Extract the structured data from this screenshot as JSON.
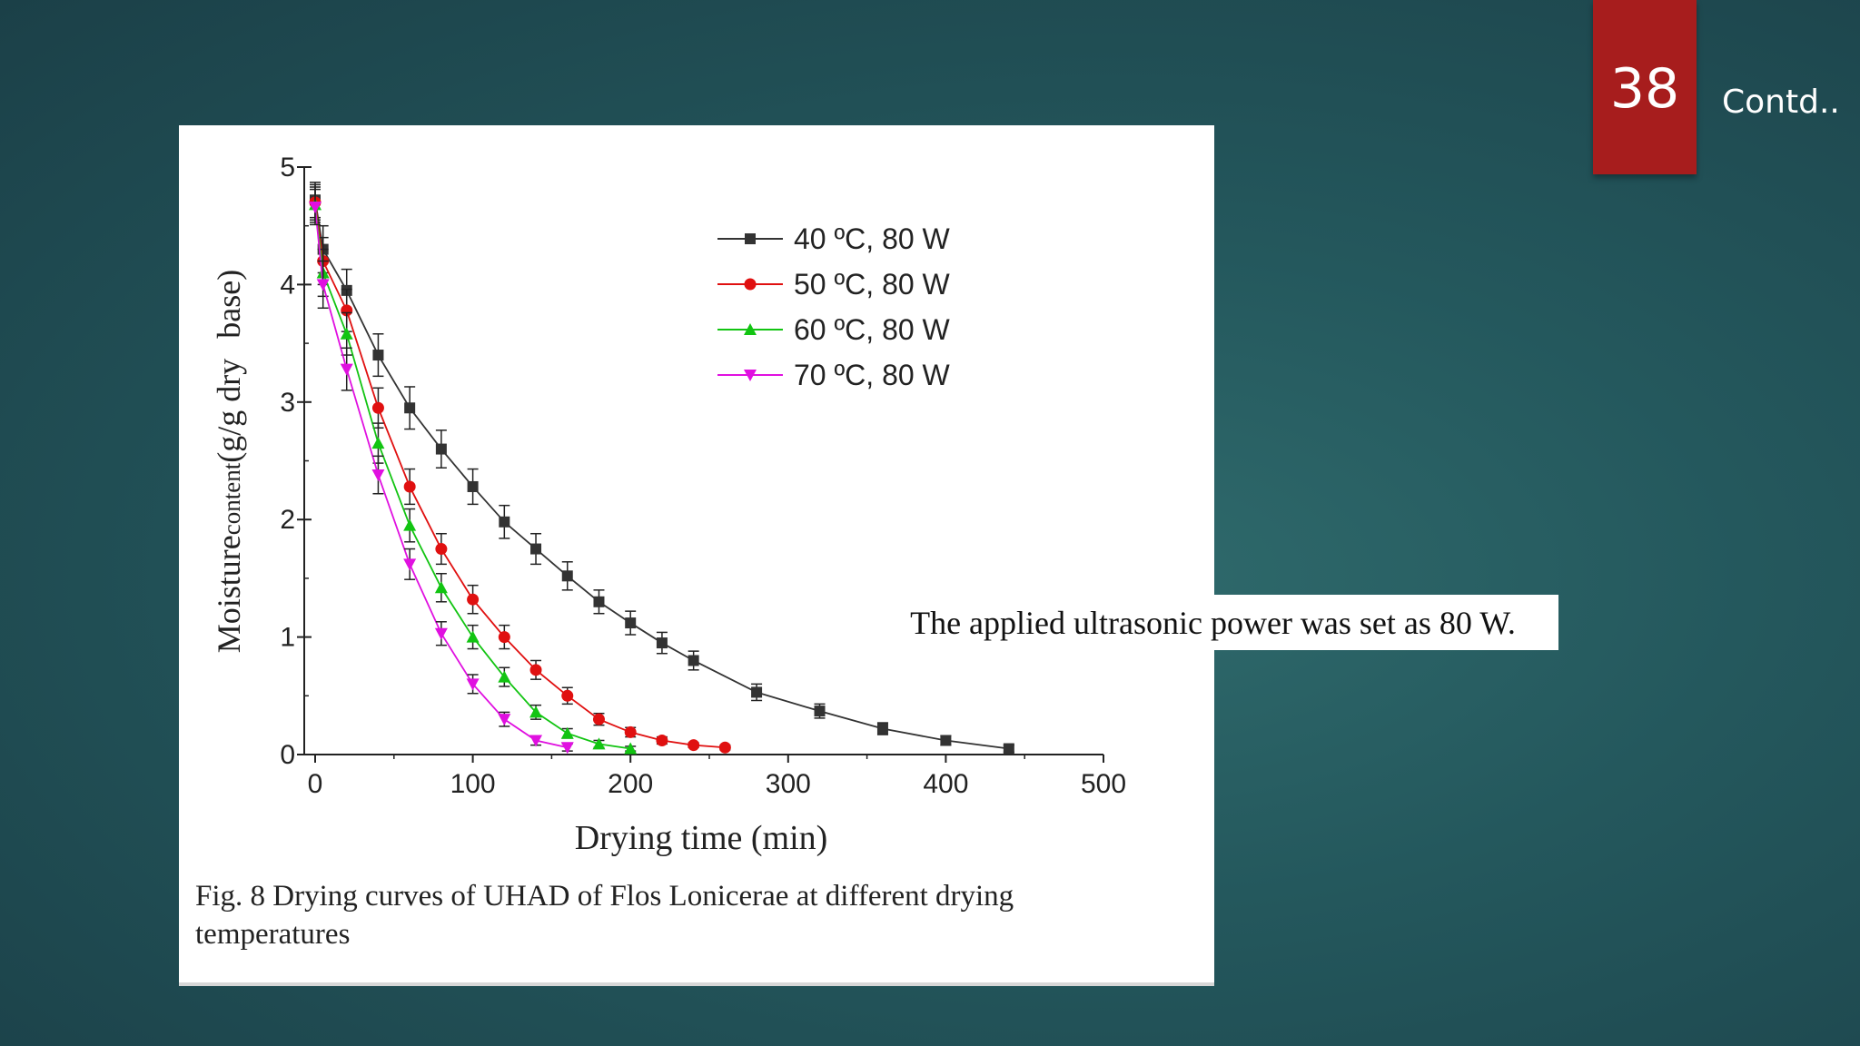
{
  "slide": {
    "number": "38",
    "title": "Contd..",
    "note": "The applied ultrasonic power was set as 80 W.",
    "accent_color": "#a71d1d"
  },
  "figure": {
    "caption_line1": "Fig. 8 Drying curves of UHAD of Flos Lonicerae at different drying",
    "caption_line2": "temperatures"
  },
  "chart_data": {
    "type": "line",
    "title": "",
    "xlabel": "Drying time (min)",
    "ylabel_parts": [
      "Moisture",
      "content",
      "(g/g dry",
      "base)"
    ],
    "xlim": [
      0,
      500
    ],
    "ylim": [
      0,
      5
    ],
    "x_ticks": [
      0,
      100,
      200,
      300,
      400,
      500
    ],
    "y_ticks": [
      0,
      1,
      2,
      3,
      4,
      5
    ],
    "legend_position": "top-right",
    "series": [
      {
        "name": "40 ºC, 80 W",
        "color": "#333333",
        "marker": "square",
        "x": [
          0,
          5,
          20,
          40,
          60,
          80,
          100,
          120,
          140,
          160,
          180,
          200,
          220,
          240,
          280,
          320,
          360,
          400,
          440
        ],
        "y": [
          4.72,
          4.3,
          3.95,
          3.4,
          2.95,
          2.6,
          2.28,
          1.98,
          1.75,
          1.52,
          1.3,
          1.12,
          0.95,
          0.8,
          0.53,
          0.37,
          0.22,
          0.12,
          0.05
        ],
        "err": [
          0.15,
          0.2,
          0.18,
          0.18,
          0.18,
          0.16,
          0.15,
          0.14,
          0.13,
          0.12,
          0.1,
          0.1,
          0.09,
          0.08,
          0.07,
          0.06,
          0.05,
          0.04,
          0.03
        ]
      },
      {
        "name": "50 ºC, 80 W",
        "color": "#e01010",
        "marker": "circle",
        "x": [
          0,
          5,
          20,
          40,
          60,
          80,
          100,
          120,
          140,
          160,
          180,
          200,
          220,
          240,
          260
        ],
        "y": [
          4.7,
          4.2,
          3.78,
          2.95,
          2.28,
          1.75,
          1.32,
          1.0,
          0.72,
          0.5,
          0.3,
          0.19,
          0.12,
          0.08,
          0.06
        ],
        "err": [
          0.15,
          0.2,
          0.18,
          0.17,
          0.15,
          0.13,
          0.12,
          0.1,
          0.08,
          0.07,
          0.05,
          0.04,
          0.03,
          0.02,
          0.02
        ]
      },
      {
        "name": "60 ºC, 80 W",
        "color": "#12c412",
        "marker": "triangle",
        "x": [
          0,
          5,
          20,
          40,
          60,
          80,
          100,
          120,
          140,
          160,
          180,
          200
        ],
        "y": [
          4.68,
          4.1,
          3.58,
          2.65,
          1.95,
          1.42,
          1.0,
          0.66,
          0.36,
          0.18,
          0.09,
          0.05
        ],
        "err": [
          0.15,
          0.2,
          0.18,
          0.17,
          0.14,
          0.12,
          0.1,
          0.08,
          0.06,
          0.04,
          0.03,
          0.02
        ]
      },
      {
        "name": "70 ºC, 80 W",
        "color": "#e010e0",
        "marker": "triangle-down",
        "x": [
          0,
          5,
          20,
          40,
          60,
          80,
          100,
          120,
          140,
          160
        ],
        "y": [
          4.66,
          4.0,
          3.28,
          2.38,
          1.62,
          1.03,
          0.6,
          0.3,
          0.12,
          0.06
        ],
        "err": [
          0.15,
          0.2,
          0.18,
          0.16,
          0.13,
          0.1,
          0.08,
          0.06,
          0.04,
          0.03
        ]
      }
    ]
  }
}
